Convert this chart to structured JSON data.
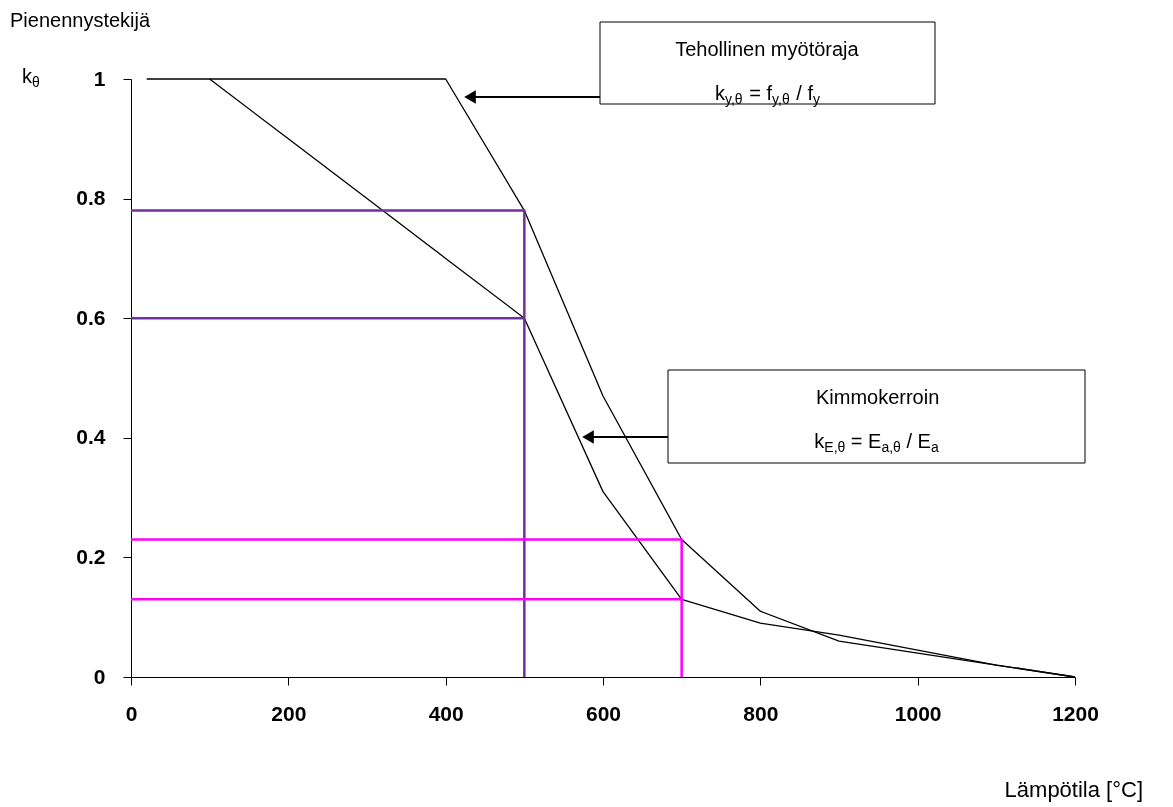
{
  "chart_data": {
    "type": "line",
    "xlabel": "Lämpötila [°C]",
    "ylabel": "Pienennystekijä",
    "xlim": [
      0,
      1200
    ],
    "ylim": [
      0,
      1
    ],
    "xticks": [
      0,
      200,
      400,
      600,
      800,
      1000,
      1200
    ],
    "yticks": [
      0,
      0.2,
      0.4,
      0.6,
      0.8,
      1
    ],
    "grid": false,
    "marker": "none",
    "line_style": "solid",
    "series": [
      {
        "color": "#000000",
        "x": [
          20,
          100,
          200,
          300,
          400,
          500,
          600,
          700,
          800,
          900,
          1000,
          1100,
          1200
        ],
        "values": [
          1,
          1,
          1,
          1,
          1,
          0.78,
          0.47,
          0.23,
          0.11,
          0.06,
          0.04,
          0.02,
          0
        ]
      },
      {
        "color": "#000000",
        "x": [
          100,
          200,
          300,
          400,
          500,
          600,
          700,
          800,
          900,
          1000,
          1100,
          1200
        ],
        "values": [
          1,
          0.9,
          0.8,
          0.7,
          0.6,
          0.31,
          0.13,
          0.09,
          0.07,
          0.045,
          0.02,
          0
        ]
      },
      {
        "color": "#7030a0",
        "x": [
          0,
          500,
          500
        ],
        "values": [
          0.78,
          0.78,
          0
        ]
      },
      {
        "color": "#7030a0",
        "x": [
          0,
          500
        ],
        "values": [
          0.6,
          0.6
        ]
      },
      {
        "color": "#ff00ff",
        "x": [
          0,
          700,
          700
        ],
        "values": [
          0.23,
          0.23,
          0
        ]
      },
      {
        "color": "#ff00ff",
        "x": [
          0,
          700
        ],
        "values": [
          0.13,
          0.13
        ]
      }
    ],
    "annotations": [
      "Tehollinen myötöraja\nk$_{y,θ}$ = f$_{y,θ}$ / f$_{y}$",
      "Kimmokerroin\nk$_{E,θ}$ = E$_{a,θ}$ / E$_{a}$",
      "k$_{θ}$"
    ]
  }
}
